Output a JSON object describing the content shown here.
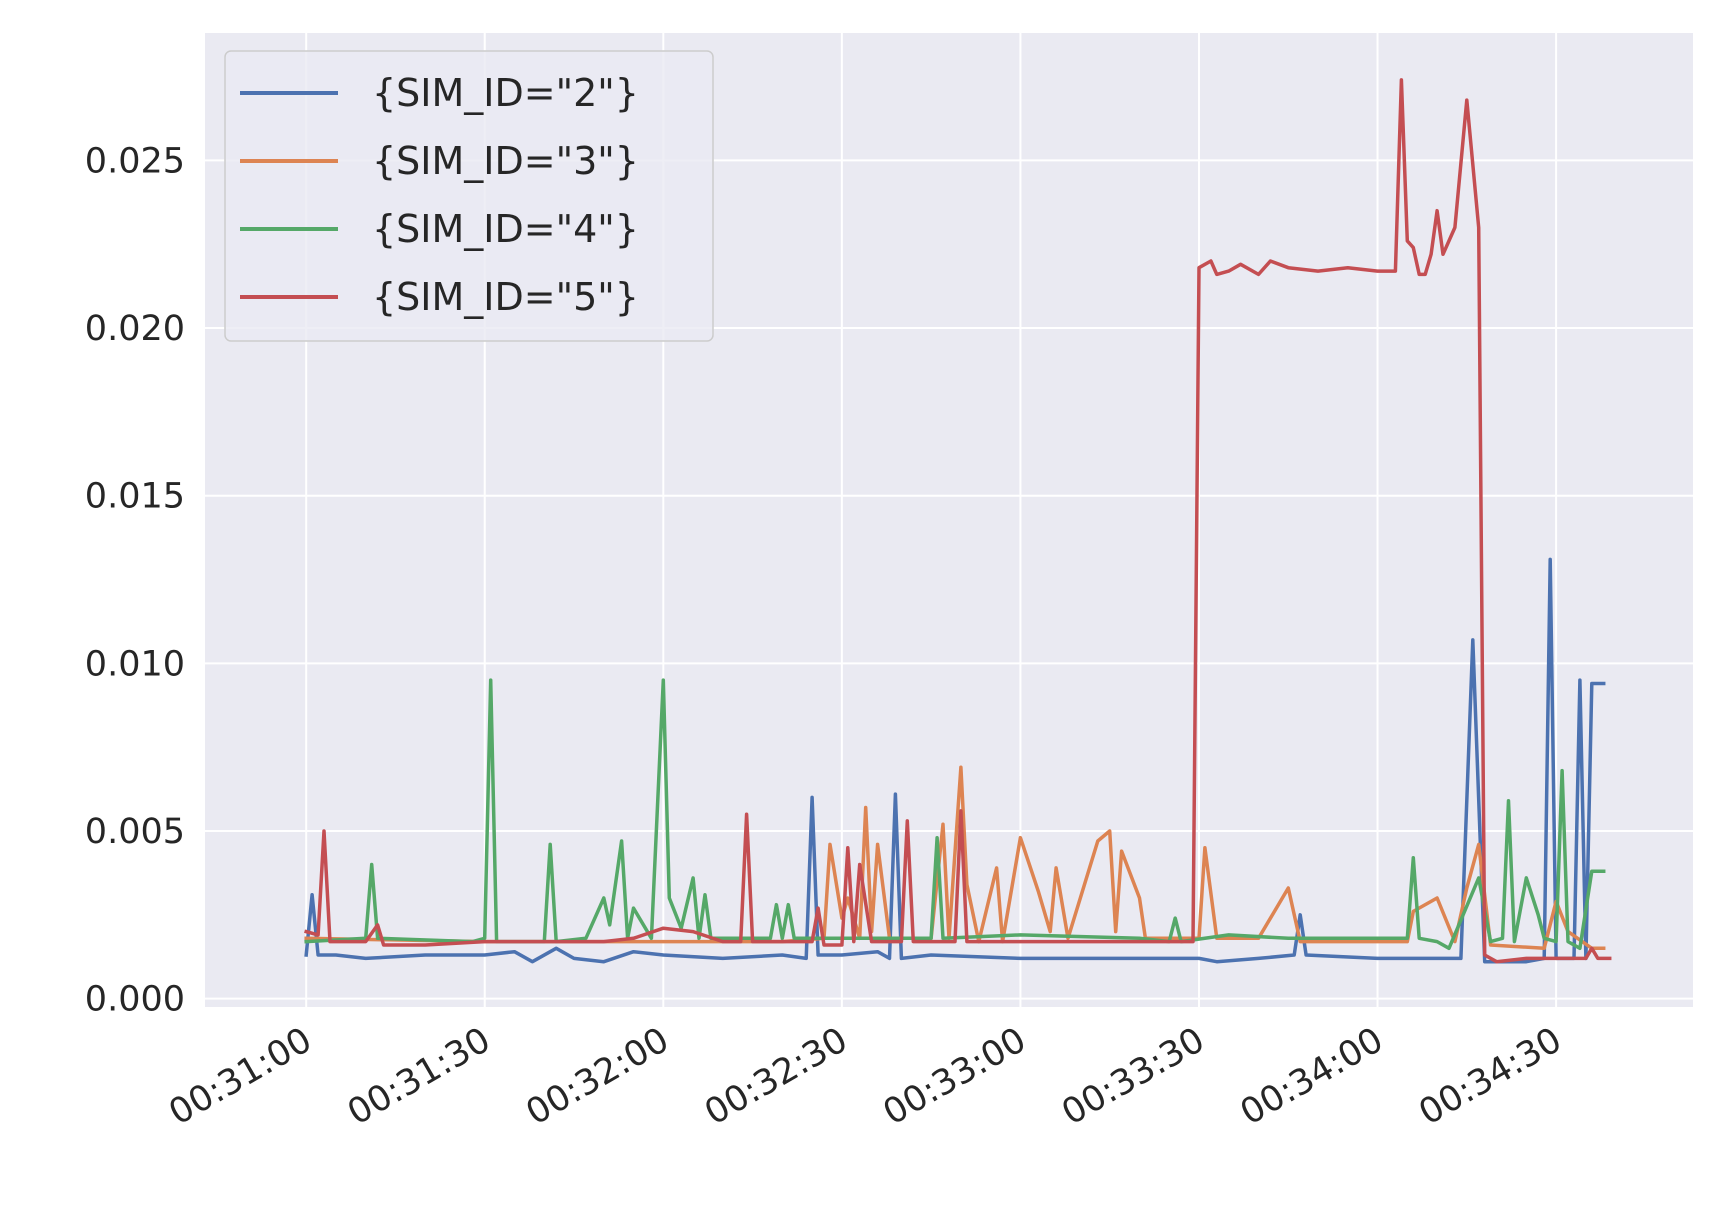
{
  "chart_data": {
    "type": "line",
    "title": "",
    "xlabel": "",
    "ylabel": "",
    "xlim": [
      "00:30:43",
      "00:34:53"
    ],
    "ylim": [
      -0.00025,
      0.0288
    ],
    "x_ticks": [
      "00:31:00",
      "00:31:30",
      "00:32:00",
      "00:32:30",
      "00:33:00",
      "00:33:30",
      "00:34:00",
      "00:34:30"
    ],
    "y_ticks": [
      {
        "value": 0.0,
        "label": "0.000"
      },
      {
        "value": 0.005,
        "label": "0.005"
      },
      {
        "value": 0.01,
        "label": "0.010"
      },
      {
        "value": 0.015,
        "label": "0.015"
      },
      {
        "value": 0.02,
        "label": "0.020"
      },
      {
        "value": 0.025,
        "label": "0.025"
      }
    ],
    "grid": true,
    "legend_position": "upper-left",
    "colors": {
      "background": "#eaeaf2",
      "grid": "#ffffff"
    },
    "series": [
      {
        "name": "{SIM_ID=\"2\"}",
        "color": "#4c72b0",
        "points": [
          [
            "00:31:00",
            0.0013
          ],
          [
            "00:31:01",
            0.0031
          ],
          [
            "00:31:02",
            0.0013
          ],
          [
            "00:31:05",
            0.0013
          ],
          [
            "00:31:10",
            0.0012
          ],
          [
            "00:31:20",
            0.0013
          ],
          [
            "00:31:30",
            0.0013
          ],
          [
            "00:31:35",
            0.0014
          ],
          [
            "00:31:38",
            0.0011
          ],
          [
            "00:31:42",
            0.0015
          ],
          [
            "00:31:45",
            0.0012
          ],
          [
            "00:31:50",
            0.0011
          ],
          [
            "00:31:55",
            0.0014
          ],
          [
            "00:32:00",
            0.0013
          ],
          [
            "00:32:10",
            0.0012
          ],
          [
            "00:32:20",
            0.0013
          ],
          [
            "00:32:24",
            0.0012
          ],
          [
            "00:32:25",
            0.006
          ],
          [
            "00:32:26",
            0.0013
          ],
          [
            "00:32:30",
            0.0013
          ],
          [
            "00:32:36",
            0.0014
          ],
          [
            "00:32:38",
            0.0012
          ],
          [
            "00:32:39",
            0.0061
          ],
          [
            "00:32:40",
            0.0012
          ],
          [
            "00:32:45",
            0.0013
          ],
          [
            "00:33:00",
            0.0012
          ],
          [
            "00:33:20",
            0.0012
          ],
          [
            "00:33:30",
            0.0012
          ],
          [
            "00:33:33",
            0.0011
          ],
          [
            "00:33:40",
            0.0012
          ],
          [
            "00:33:46",
            0.0013
          ],
          [
            "00:33:47",
            0.0025
          ],
          [
            "00:33:48",
            0.0013
          ],
          [
            "00:34:00",
            0.0012
          ],
          [
            "00:34:10",
            0.0012
          ],
          [
            "00:34:14",
            0.0012
          ],
          [
            "00:34:16",
            0.0107
          ],
          [
            "00:34:18",
            0.0011
          ],
          [
            "00:34:25",
            0.0011
          ],
          [
            "00:34:28",
            0.0012
          ],
          [
            "00:34:29",
            0.0131
          ],
          [
            "00:34:30",
            0.0012
          ],
          [
            "00:34:33",
            0.0012
          ],
          [
            "00:34:34",
            0.0095
          ],
          [
            "00:34:35",
            0.0012
          ],
          [
            "00:34:36",
            0.0094
          ],
          [
            "00:34:38",
            0.0094
          ]
        ]
      },
      {
        "name": "{SIM_ID=\"3\"}",
        "color": "#dd8452",
        "points": [
          [
            "00:31:00",
            0.0018
          ],
          [
            "00:31:30",
            0.0017
          ],
          [
            "00:32:00",
            0.0017
          ],
          [
            "00:32:20",
            0.0017
          ],
          [
            "00:32:27",
            0.0018
          ],
          [
            "00:32:28",
            0.0046
          ],
          [
            "00:32:30",
            0.0024
          ],
          [
            "00:32:31",
            0.003
          ],
          [
            "00:32:33",
            0.0018
          ],
          [
            "00:32:34",
            0.0057
          ],
          [
            "00:32:35",
            0.002
          ],
          [
            "00:32:36",
            0.0046
          ],
          [
            "00:32:38",
            0.0018
          ],
          [
            "00:32:45",
            0.0018
          ],
          [
            "00:32:47",
            0.0052
          ],
          [
            "00:32:48",
            0.0018
          ],
          [
            "00:32:50",
            0.0069
          ],
          [
            "00:32:51",
            0.0034
          ],
          [
            "00:32:53",
            0.0017
          ],
          [
            "00:32:56",
            0.0039
          ],
          [
            "00:32:57",
            0.0017
          ],
          [
            "00:33:00",
            0.0048
          ],
          [
            "00:33:03",
            0.0032
          ],
          [
            "00:33:05",
            0.002
          ],
          [
            "00:33:06",
            0.0039
          ],
          [
            "00:33:08",
            0.0018
          ],
          [
            "00:33:13",
            0.0047
          ],
          [
            "00:33:15",
            0.005
          ],
          [
            "00:33:16",
            0.002
          ],
          [
            "00:33:17",
            0.0044
          ],
          [
            "00:33:20",
            0.003
          ],
          [
            "00:33:21",
            0.0018
          ],
          [
            "00:33:30",
            0.0018
          ],
          [
            "00:33:31",
            0.0045
          ],
          [
            "00:33:33",
            0.0018
          ],
          [
            "00:33:40",
            0.0018
          ],
          [
            "00:33:45",
            0.0033
          ],
          [
            "00:33:47",
            0.0017
          ],
          [
            "00:34:00",
            0.0017
          ],
          [
            "00:34:05",
            0.0017
          ],
          [
            "00:34:06",
            0.0026
          ],
          [
            "00:34:10",
            0.003
          ],
          [
            "00:34:13",
            0.0017
          ],
          [
            "00:34:15",
            0.0033
          ],
          [
            "00:34:17",
            0.0046
          ],
          [
            "00:34:19",
            0.0016
          ],
          [
            "00:34:28",
            0.0015
          ],
          [
            "00:34:30",
            0.0029
          ],
          [
            "00:34:32",
            0.002
          ],
          [
            "00:34:36",
            0.0015
          ],
          [
            "00:34:38",
            0.0015
          ]
        ]
      },
      {
        "name": "{SIM_ID=\"4\"}",
        "color": "#55a868",
        "points": [
          [
            "00:31:00",
            0.0017
          ],
          [
            "00:31:10",
            0.0018
          ],
          [
            "00:31:11",
            0.004
          ],
          [
            "00:31:12",
            0.0018
          ],
          [
            "00:31:28",
            0.0017
          ],
          [
            "00:31:30",
            0.0018
          ],
          [
            "00:31:31",
            0.0095
          ],
          [
            "00:31:32",
            0.0017
          ],
          [
            "00:31:40",
            0.0017
          ],
          [
            "00:31:41",
            0.0046
          ],
          [
            "00:31:42",
            0.0017
          ],
          [
            "00:31:47",
            0.0018
          ],
          [
            "00:31:50",
            0.003
          ],
          [
            "00:31:51",
            0.0022
          ],
          [
            "00:31:53",
            0.0047
          ],
          [
            "00:31:54",
            0.0018
          ],
          [
            "00:31:55",
            0.0027
          ],
          [
            "00:31:58",
            0.0018
          ],
          [
            "00:32:00",
            0.0095
          ],
          [
            "00:32:01",
            0.003
          ],
          [
            "00:32:03",
            0.0021
          ],
          [
            "00:32:05",
            0.0036
          ],
          [
            "00:32:06",
            0.0018
          ],
          [
            "00:32:07",
            0.0031
          ],
          [
            "00:32:08",
            0.0018
          ],
          [
            "00:32:18",
            0.0018
          ],
          [
            "00:32:19",
            0.0028
          ],
          [
            "00:32:20",
            0.0018
          ],
          [
            "00:32:21",
            0.0028
          ],
          [
            "00:32:22",
            0.0018
          ],
          [
            "00:32:45",
            0.0018
          ],
          [
            "00:32:46",
            0.0048
          ],
          [
            "00:32:47",
            0.0018
          ],
          [
            "00:33:00",
            0.0019
          ],
          [
            "00:33:20",
            0.0018
          ],
          [
            "00:33:25",
            0.0017
          ],
          [
            "00:33:26",
            0.0024
          ],
          [
            "00:33:27",
            0.0017
          ],
          [
            "00:33:35",
            0.0019
          ],
          [
            "00:33:45",
            0.0018
          ],
          [
            "00:34:05",
            0.0018
          ],
          [
            "00:34:06",
            0.0042
          ],
          [
            "00:34:07",
            0.0018
          ],
          [
            "00:34:10",
            0.0017
          ],
          [
            "00:34:12",
            0.0015
          ],
          [
            "00:34:17",
            0.0036
          ],
          [
            "00:34:19",
            0.0017
          ],
          [
            "00:34:21",
            0.0018
          ],
          [
            "00:34:22",
            0.0059
          ],
          [
            "00:34:23",
            0.0017
          ],
          [
            "00:34:25",
            0.0036
          ],
          [
            "00:34:27",
            0.0025
          ],
          [
            "00:34:28",
            0.0018
          ],
          [
            "00:34:30",
            0.0017
          ],
          [
            "00:34:31",
            0.0068
          ],
          [
            "00:34:32",
            0.0017
          ],
          [
            "00:34:34",
            0.0015
          ],
          [
            "00:34:36",
            0.0038
          ],
          [
            "00:34:38",
            0.0038
          ]
        ]
      },
      {
        "name": "{SIM_ID=\"5\"}",
        "color": "#c44e52",
        "points": [
          [
            "00:31:00",
            0.002
          ],
          [
            "00:31:02",
            0.0019
          ],
          [
            "00:31:03",
            0.005
          ],
          [
            "00:31:04",
            0.0017
          ],
          [
            "00:31:10",
            0.0017
          ],
          [
            "00:31:12",
            0.0022
          ],
          [
            "00:31:13",
            0.0016
          ],
          [
            "00:31:20",
            0.0016
          ],
          [
            "00:31:30",
            0.0017
          ],
          [
            "00:31:40",
            0.0017
          ],
          [
            "00:31:50",
            0.0017
          ],
          [
            "00:31:55",
            0.0018
          ],
          [
            "00:32:00",
            0.0021
          ],
          [
            "00:32:05",
            0.002
          ],
          [
            "00:32:10",
            0.0017
          ],
          [
            "00:32:13",
            0.0017
          ],
          [
            "00:32:14",
            0.0055
          ],
          [
            "00:32:15",
            0.0017
          ],
          [
            "00:32:25",
            0.0017
          ],
          [
            "00:32:26",
            0.0027
          ],
          [
            "00:32:27",
            0.0016
          ],
          [
            "00:32:30",
            0.0016
          ],
          [
            "00:32:31",
            0.0045
          ],
          [
            "00:32:32",
            0.0017
          ],
          [
            "00:32:33",
            0.004
          ],
          [
            "00:32:35",
            0.0017
          ],
          [
            "00:32:40",
            0.0017
          ],
          [
            "00:32:41",
            0.0053
          ],
          [
            "00:32:42",
            0.0017
          ],
          [
            "00:32:49",
            0.0017
          ],
          [
            "00:32:50",
            0.0056
          ],
          [
            "00:32:51",
            0.0017
          ],
          [
            "00:32:56",
            0.0017
          ],
          [
            "00:33:10",
            0.0017
          ],
          [
            "00:33:20",
            0.0017
          ],
          [
            "00:33:29",
            0.0017
          ],
          [
            "00:33:30",
            0.0218
          ],
          [
            "00:33:32",
            0.022
          ],
          [
            "00:33:33",
            0.0216
          ],
          [
            "00:33:35",
            0.0217
          ],
          [
            "00:33:37",
            0.0219
          ],
          [
            "00:33:40",
            0.0216
          ],
          [
            "00:33:42",
            0.022
          ],
          [
            "00:33:45",
            0.0218
          ],
          [
            "00:33:50",
            0.0217
          ],
          [
            "00:33:55",
            0.0218
          ],
          [
            "00:34:00",
            0.0217
          ],
          [
            "00:34:03",
            0.0217
          ],
          [
            "00:34:04",
            0.0274
          ],
          [
            "00:34:05",
            0.0226
          ],
          [
            "00:34:06",
            0.0224
          ],
          [
            "00:34:07",
            0.0216
          ],
          [
            "00:34:08",
            0.0216
          ],
          [
            "00:34:09",
            0.0222
          ],
          [
            "00:34:10",
            0.0235
          ],
          [
            "00:34:11",
            0.0222
          ],
          [
            "00:34:13",
            0.023
          ],
          [
            "00:34:15",
            0.0268
          ],
          [
            "00:34:17",
            0.023
          ],
          [
            "00:34:18",
            0.0013
          ],
          [
            "00:34:20",
            0.0011
          ],
          [
            "00:34:25",
            0.0012
          ],
          [
            "00:34:30",
            0.0012
          ],
          [
            "00:34:35",
            0.0012
          ],
          [
            "00:34:36",
            0.0015
          ],
          [
            "00:34:37",
            0.0012
          ],
          [
            "00:34:39",
            0.0012
          ]
        ]
      }
    ]
  }
}
